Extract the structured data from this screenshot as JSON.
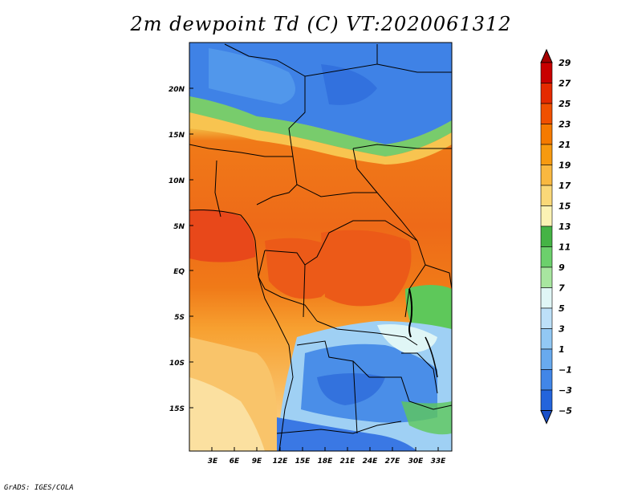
{
  "title": "2m dewpoint Td (C) VT:2020061312",
  "credit": "GrADS: IGES/COLA",
  "map": {
    "lat_labels": [
      "20N",
      "15N",
      "10N",
      "5N",
      "EQ",
      "5S",
      "10S",
      "15S"
    ],
    "lon_labels": [
      "3E",
      "6E",
      "9E",
      "12E",
      "15E",
      "18E",
      "21E",
      "24E",
      "27E",
      "30E",
      "33E"
    ]
  },
  "colorbar": {
    "levels": [
      "29",
      "27",
      "25",
      "23",
      "21",
      "19",
      "17",
      "15",
      "13",
      "11",
      "9",
      "7",
      "5",
      "3",
      "1",
      "−1",
      "−3",
      "−5"
    ],
    "colors": [
      "#a50000",
      "#c80000",
      "#e42a00",
      "#f05000",
      "#f57a00",
      "#f79a10",
      "#f9b840",
      "#fad878",
      "#fcf2b4",
      "#45b345",
      "#6cd06c",
      "#a8e6a0",
      "#e0f6f6",
      "#bde0f8",
      "#92c8f4",
      "#68aaee",
      "#4186e8",
      "#2364dc",
      "#1a50c8"
    ]
  },
  "colors": {
    "border": "#000000",
    "frame": "#000000"
  }
}
